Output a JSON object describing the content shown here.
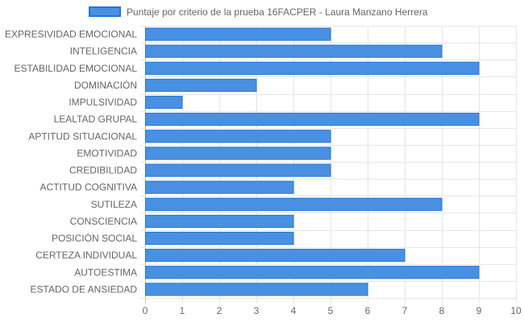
{
  "chart_data": {
    "type": "bar",
    "orientation": "horizontal",
    "title": "",
    "xlabel": "",
    "ylabel": "",
    "xlim": [
      0,
      10
    ],
    "x_ticks": [
      0,
      1,
      2,
      3,
      4,
      5,
      6,
      7,
      8,
      9,
      10
    ],
    "grid": true,
    "legend_position": "top",
    "categories": [
      "EXPRESIVIDAD EMOCIONAL",
      "INTELIGENCIA",
      "ESTABILIDAD EMOCIONAL",
      "DOMINACIÓN",
      "IMPULSIVIDAD",
      "LEALTAD GRUPAL",
      "APTITUD SITUACIONAL",
      "EMOTIVIDAD",
      "CREDIBILIDAD",
      "ACTITUD COGNITIVA",
      "SUTILEZA",
      "CONSCIENCIA",
      "POSICIÓN SOCIAL",
      "CERTEZA INDIVIDUAL",
      "AUTOESTIMA",
      "ESTADO DE ANSIEDAD"
    ],
    "series": [
      {
        "name": "Puntaje por criterio de la prueba 16FACPER - Laura Manzano Herrera",
        "color": "#4a90e2",
        "border_color": "#1e78dc",
        "values": [
          5,
          8,
          9,
          3,
          1,
          9,
          5,
          5,
          5,
          4,
          8,
          4,
          4,
          7,
          9,
          6
        ]
      }
    ]
  }
}
